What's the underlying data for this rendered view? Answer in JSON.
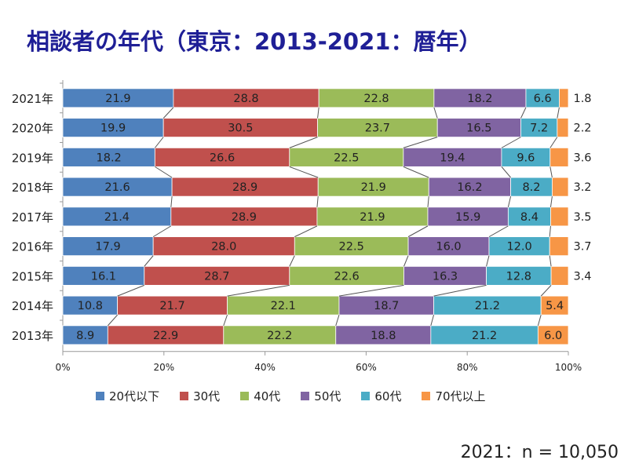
{
  "title": "相談者の年代（東京：2013-2021：暦年）",
  "note": "2021：n = 10,050",
  "chart_data": {
    "type": "bar",
    "stacked": true,
    "orientation": "horizontal",
    "title": "相談者の年代（東京：2013-2021：暦年）",
    "categories": [
      "2021年",
      "2020年",
      "2019年",
      "2018年",
      "2017年",
      "2016年",
      "2015年",
      "2014年",
      "2013年"
    ],
    "series": [
      {
        "name": "20代以下",
        "color": "#4f81bd",
        "values": [
          21.9,
          19.9,
          18.2,
          21.6,
          21.4,
          17.9,
          16.1,
          10.8,
          8.9
        ]
      },
      {
        "name": "30代",
        "color": "#c0504d",
        "values": [
          28.8,
          30.5,
          26.6,
          28.9,
          28.9,
          28.0,
          28.7,
          21.7,
          22.9
        ]
      },
      {
        "name": "40代",
        "color": "#9bbb59",
        "values": [
          22.8,
          23.7,
          22.5,
          21.9,
          21.9,
          22.5,
          22.6,
          22.1,
          22.2
        ]
      },
      {
        "name": "50代",
        "color": "#8064a2",
        "values": [
          18.2,
          16.5,
          19.4,
          16.2,
          15.9,
          16.0,
          16.3,
          18.7,
          18.8
        ]
      },
      {
        "name": "60代",
        "color": "#4bacc6",
        "values": [
          6.6,
          7.2,
          9.6,
          8.2,
          8.4,
          12.0,
          12.8,
          21.2,
          21.2
        ]
      },
      {
        "name": "70代以上",
        "color": "#f79646",
        "values": [
          1.8,
          2.2,
          3.6,
          3.2,
          3.5,
          3.7,
          3.4,
          5.4,
          6.0
        ]
      }
    ],
    "xticks": [
      "0%",
      "20%",
      "40%",
      "60%",
      "80%",
      "100%"
    ],
    "xlim": [
      0,
      100
    ],
    "legend": "bottom"
  }
}
